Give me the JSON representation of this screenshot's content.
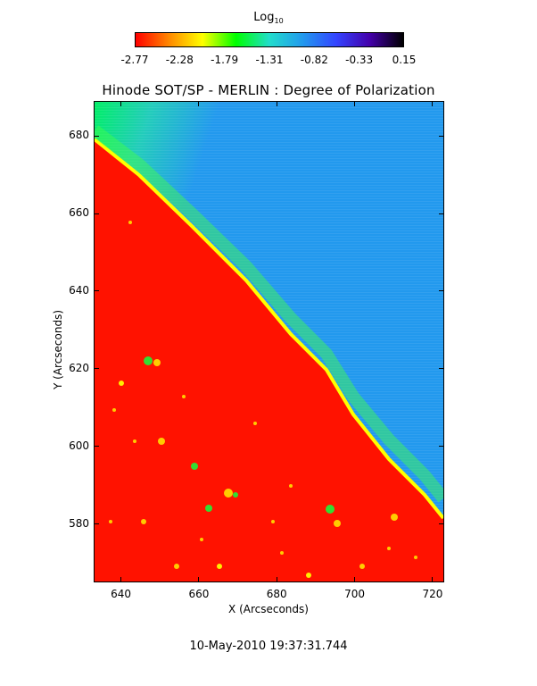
{
  "colorbar": {
    "title_main": "Log",
    "title_sub": "10",
    "ticks": [
      "-2.77",
      "-2.28",
      "-1.79",
      "-1.31",
      "-0.82",
      "-0.33",
      "0.15"
    ],
    "colors": [
      "#ff0000",
      "#ff8800",
      "#ffff00",
      "#00ff00",
      "#22ddcc",
      "#2299ee",
      "#3344ff",
      "#4400aa",
      "#000000"
    ]
  },
  "plot": {
    "title": "Hinode SOT/SP - MERLIN : Degree of Polarization",
    "xlabel": "X (Arcseconds)",
    "ylabel": "Y (Arcseconds)",
    "xticks": [
      "640",
      "660",
      "680",
      "700",
      "720"
    ],
    "yticks": [
      "680",
      "660",
      "640",
      "620",
      "600",
      "580"
    ],
    "xrange": [
      633,
      723
    ],
    "yrange": [
      565,
      689
    ],
    "colors": {
      "disk": "#ff1200",
      "limb": "#ffff00",
      "offlimb_near": "#00ee66",
      "offlimb_far": "#2299ee"
    }
  },
  "timestamp": "10-May-2010 19:37:31.744"
}
